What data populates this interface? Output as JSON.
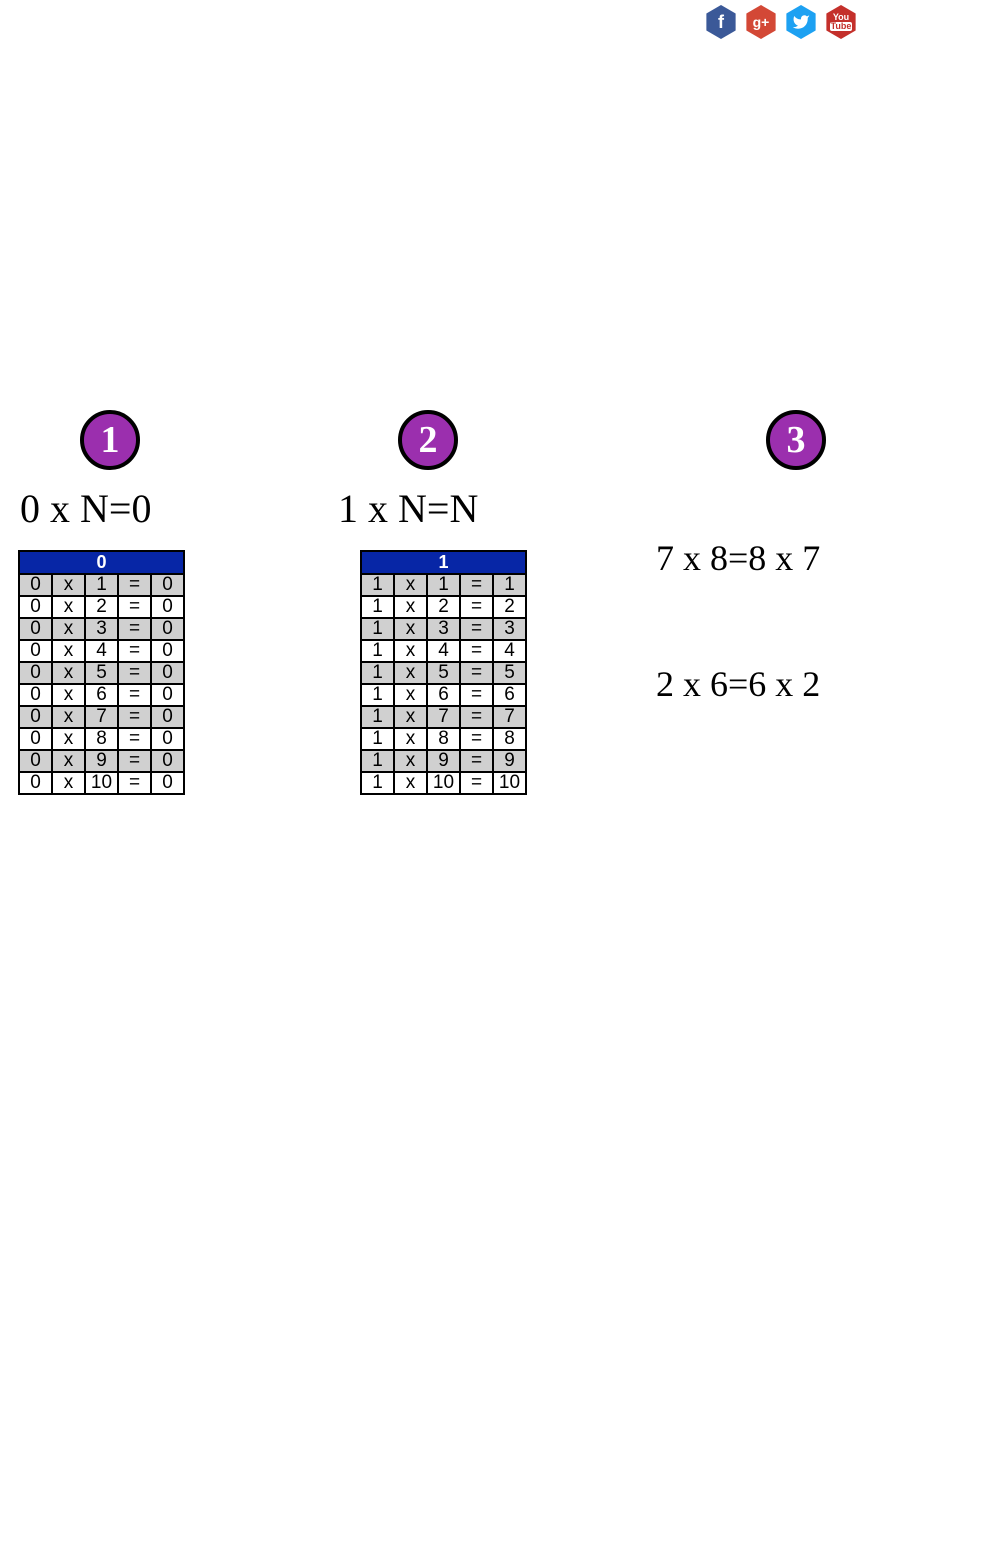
{
  "social": {
    "facebook_label": "f",
    "googleplus_label": "g+",
    "twitter_label": "t",
    "youtube_label_top": "You",
    "youtube_label_bottom": "Tube"
  },
  "badges": {
    "b1": "1",
    "b2": "2",
    "b3": "3"
  },
  "formulas": {
    "f1": "0 x N=0",
    "f2": "1 x N=N",
    "f3a": "7 x 8=8 x 7",
    "f3b": "2 x 6=6 x 2"
  },
  "table0": {
    "header": "0",
    "rows": [
      [
        "0",
        "x",
        "1",
        "=",
        "0"
      ],
      [
        "0",
        "x",
        "2",
        "=",
        "0"
      ],
      [
        "0",
        "x",
        "3",
        "=",
        "0"
      ],
      [
        "0",
        "x",
        "4",
        "=",
        "0"
      ],
      [
        "0",
        "x",
        "5",
        "=",
        "0"
      ],
      [
        "0",
        "x",
        "6",
        "=",
        "0"
      ],
      [
        "0",
        "x",
        "7",
        "=",
        "0"
      ],
      [
        "0",
        "x",
        "8",
        "=",
        "0"
      ],
      [
        "0",
        "x",
        "9",
        "=",
        "0"
      ],
      [
        "0",
        "x",
        "10",
        "=",
        "0"
      ]
    ]
  },
  "table1": {
    "header": "1",
    "rows": [
      [
        "1",
        "x",
        "1",
        "=",
        "1"
      ],
      [
        "1",
        "x",
        "2",
        "=",
        "2"
      ],
      [
        "1",
        "x",
        "3",
        "=",
        "3"
      ],
      [
        "1",
        "x",
        "4",
        "=",
        "4"
      ],
      [
        "1",
        "x",
        "5",
        "=",
        "5"
      ],
      [
        "1",
        "x",
        "6",
        "=",
        "6"
      ],
      [
        "1",
        "x",
        "7",
        "=",
        "7"
      ],
      [
        "1",
        "x",
        "8",
        "=",
        "8"
      ],
      [
        "1",
        "x",
        "9",
        "=",
        "9"
      ],
      [
        "1",
        "x",
        "10",
        "=",
        "10"
      ]
    ]
  },
  "colors": {
    "badge_bg": "#9b2fae",
    "table_header_bg": "#0726a6",
    "row_odd_bg": "#d0d0d0",
    "row_even_bg": "#ffffff",
    "fb": "#3b5998",
    "gp": "#d34836",
    "tw": "#1da1f2",
    "yt": "#c4302b"
  }
}
